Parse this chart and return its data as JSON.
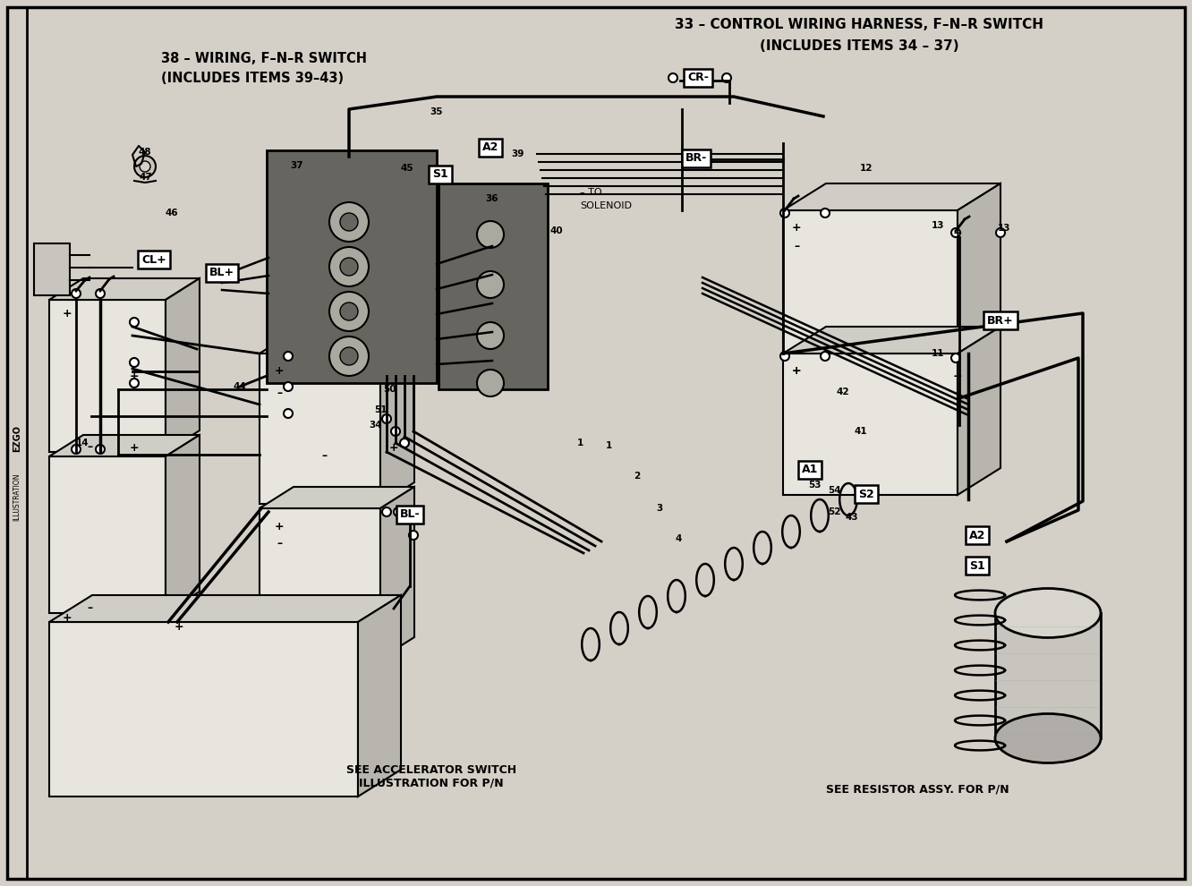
{
  "bg_color": "#d4d0c8",
  "border_color": "#000000",
  "title_right_line1": "33 – CONTROL WIRING HARNESS, F–N–R SWITCH",
  "title_right_line2": "(INCLUDES ITEMS 34 – 37)",
  "title_left_line1": "38 – WIRING, F–N–R SWITCH",
  "title_left_line2": "(INCLUDES ITEMS 39–43)",
  "bottom_left_text": "SEE ACCELERATOR SWITCH\nILLUSTRATION FOR P/N",
  "bottom_right_text": "SEE RESISTOR ASSY. FOR P/N",
  "wire_color": "#1a1a1a",
  "box_fill": "#ffffff",
  "dark_panel": "#666560",
  "panel_circle": "#aaa9a0",
  "battery_face": "#e8e5de",
  "battery_top": "#d0cdc6",
  "battery_side": "#b8b5ae",
  "motor_color": "#c8c5be"
}
